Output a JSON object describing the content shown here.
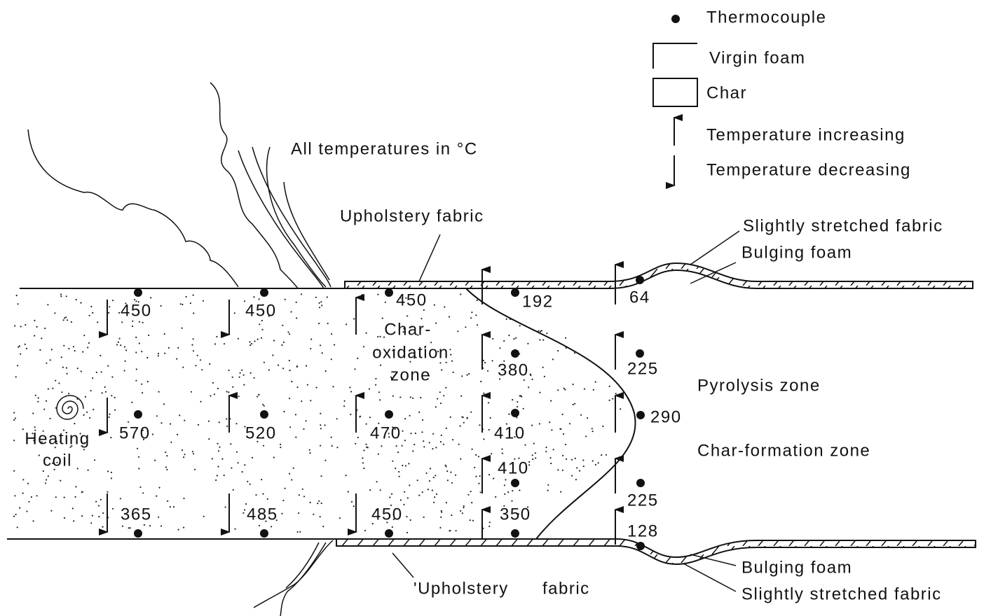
{
  "legend": {
    "items": [
      "Thermocouple",
      "Virgin foam",
      "Char",
      "Temperature increasing",
      "Temperature decreasing"
    ]
  },
  "note": "All temperatures in °C",
  "labels": {
    "top_fabric": "Upholstery fabric",
    "bottom_fabric": "'Upholstery fabric",
    "top_stretched": "Slightly stretched fabric",
    "top_bulging": "Bulging foam",
    "bottom_bulging": "Bulging foam",
    "bottom_stretched": "Slightly stretched fabric"
  },
  "zones": {
    "char_oxidation": [
      "Char-",
      "oxidation",
      "zone"
    ],
    "pyrolysis": "Pyrolysis zone",
    "char_formation": "Char-formation zone",
    "heating_coil": [
      "Heating",
      "coil"
    ]
  },
  "readings": [
    450,
    450,
    450,
    192,
    64,
    380,
    225,
    570,
    520,
    470,
    410,
    290,
    410,
    225,
    365,
    485,
    450,
    350,
    128
  ]
}
